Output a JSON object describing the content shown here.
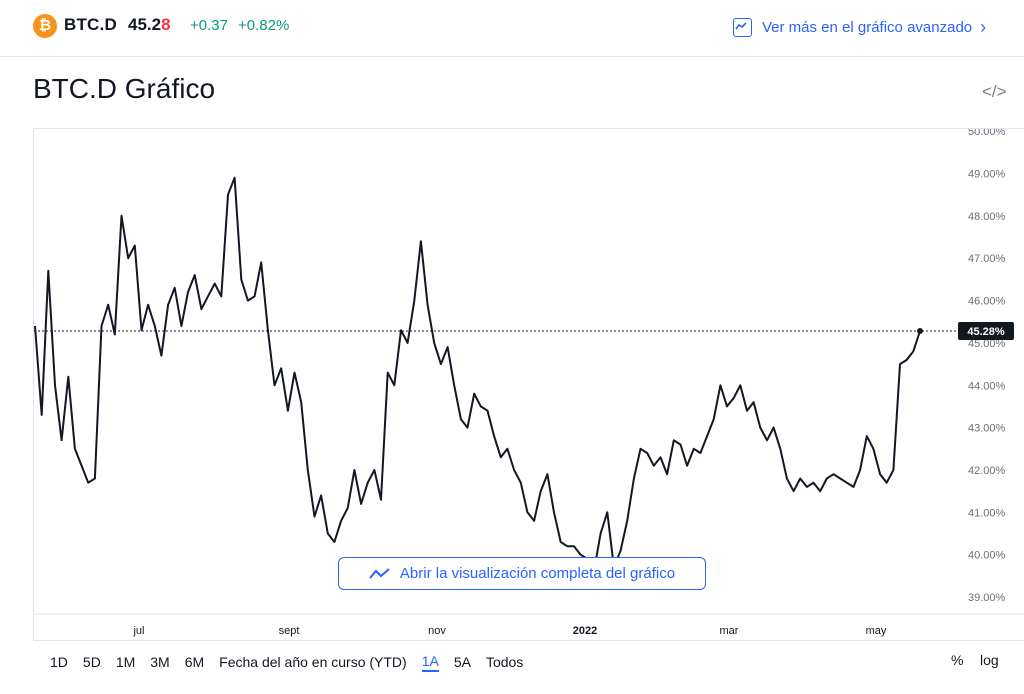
{
  "header": {
    "logo_glyph": "₿",
    "symbol": "BTC.D",
    "price_main": "45.2",
    "price_last_digit": "8",
    "change": "+0.37",
    "change_percent": "+0.82%",
    "advanced_link": "Ver más en el gráfico avanzado",
    "positive_color": "#089981",
    "negative_color": "#f23645",
    "accent_color": "#2962ff"
  },
  "title": "BTC.D Gráfico",
  "embed_icon": "code-icon",
  "open_button": "Abrir la visualización completa del gráfico",
  "ranges": [
    "1D",
    "5D",
    "1M",
    "3M",
    "6M",
    "Fecha del año en curso (YTD)",
    "1A",
    "5A",
    "Todos"
  ],
  "active_range": "1A",
  "options": {
    "percent": "%",
    "log": "log"
  },
  "chart_data": {
    "type": "line",
    "title": "",
    "xlabel": "",
    "ylabel": "",
    "x_tick_labels": [
      "jul",
      "sept",
      "nov",
      "2022",
      "mar",
      "may"
    ],
    "y_tick_labels": [
      "39.00%",
      "40.00%",
      "41.00%",
      "42.00%",
      "43.00%",
      "44.00%",
      "45.00%",
      "46.00%",
      "47.00%",
      "48.00%",
      "49.00%",
      "50.00%"
    ],
    "ylim": [
      38.6,
      50.05
    ],
    "last_value_label": "45.28%",
    "last_value": 45.28,
    "grid": false,
    "line_color": "#131722",
    "series": [
      {
        "x_start": "2021-05-23",
        "x_end": "2022-05-23",
        "values": [
          45.4,
          43.3,
          46.7,
          44.0,
          42.7,
          44.2,
          42.5,
          42.1,
          41.7,
          41.8,
          45.4,
          45.9,
          45.2,
          48.0,
          47.0,
          47.3,
          45.3,
          45.9,
          45.4,
          44.7,
          45.9,
          46.3,
          45.4,
          46.2,
          46.6,
          45.8,
          46.1,
          46.4,
          46.1,
          48.5,
          48.9,
          46.5,
          46.0,
          46.1,
          46.9,
          45.3,
          44.0,
          44.4,
          43.4,
          44.3,
          43.6,
          42.0,
          40.9,
          41.4,
          40.5,
          40.3,
          40.8,
          41.1,
          42.0,
          41.2,
          41.7,
          42.0,
          41.3,
          44.3,
          44.0,
          45.3,
          45.0,
          46.0,
          47.4,
          45.9,
          45.0,
          44.5,
          44.9,
          44.0,
          43.2,
          43.0,
          43.8,
          43.5,
          43.4,
          42.8,
          42.3,
          42.5,
          42.0,
          41.7,
          41.0,
          40.8,
          41.5,
          41.9,
          41.0,
          40.3,
          40.2,
          40.2,
          40.0,
          39.9,
          39.6,
          40.5,
          41.0,
          39.7,
          40.1,
          40.8,
          41.8,
          42.5,
          42.4,
          42.1,
          42.3,
          41.9,
          42.7,
          42.6,
          42.1,
          42.5,
          42.4,
          42.8,
          43.2,
          44.0,
          43.5,
          43.7,
          44.0,
          43.4,
          43.6,
          43.0,
          42.7,
          43.0,
          42.5,
          41.8,
          41.5,
          41.8,
          41.6,
          41.7,
          41.5,
          41.8,
          41.9,
          41.8,
          41.7,
          41.6,
          42.0,
          42.8,
          42.5,
          41.9,
          41.7,
          42.0,
          44.5,
          44.6,
          44.8,
          45.28
        ]
      }
    ]
  }
}
